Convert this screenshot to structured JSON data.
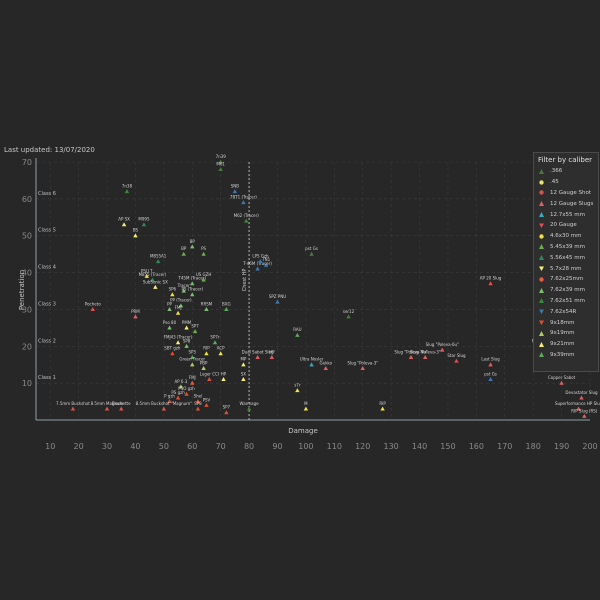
{
  "updated": "Last updated: 13/07/2020",
  "legend": {
    "title": "Filter by caliber",
    "items": [
      {
        "name": ".366",
        "color": "#4a7a3a",
        "shape": "triangle-up"
      },
      {
        "name": ".45",
        "color": "#e8e070",
        "shape": "circle"
      },
      {
        "name": "12 Gauge Shot",
        "color": "#d9534f",
        "shape": "circle"
      },
      {
        "name": "12 Gauge Slugs",
        "color": "#e06060",
        "shape": "triangle-up"
      },
      {
        "name": "12.7x55 mm",
        "color": "#3aa8c8",
        "shape": "triangle-up"
      },
      {
        "name": "20 Gauge",
        "color": "#e05050",
        "shape": "triangle-down"
      },
      {
        "name": "4.6x30 mm",
        "color": "#f0e040",
        "shape": "circle"
      },
      {
        "name": "5.45x39 mm",
        "color": "#6ab04c",
        "shape": "triangle-up"
      },
      {
        "name": "5.56x45 mm",
        "color": "#2e8b57",
        "shape": "triangle-up"
      },
      {
        "name": "5.7x28 mm",
        "color": "#f5f07a",
        "shape": "triangle-down"
      },
      {
        "name": "7.62x25mm",
        "color": "#e06040",
        "shape": "circle"
      },
      {
        "name": "7.62x39 mm",
        "color": "#7ac070",
        "shape": "triangle-up"
      },
      {
        "name": "7.62x51 mm",
        "color": "#3a8a3a",
        "shape": "triangle-up"
      },
      {
        "name": "7.62x54R",
        "color": "#3a7ab8",
        "shape": "triangle-down"
      },
      {
        "name": "9x18mm",
        "color": "#e05030",
        "shape": "triangle-down"
      },
      {
        "name": "9x19mm",
        "color": "#b0d060",
        "shape": "triangle-up"
      },
      {
        "name": "9x21mm",
        "color": "#f8f070",
        "shape": "triangle-up"
      },
      {
        "name": "9x39mm",
        "color": "#5aaa5a",
        "shape": "triangle-up"
      }
    ]
  },
  "chart_data": {
    "type": "scatter",
    "title": "",
    "xlabel": "Damage",
    "ylabel": "Penetration",
    "xlim": [
      5,
      200
    ],
    "ylim": [
      0,
      70
    ],
    "xticks": [
      "10",
      "20",
      "30",
      "40",
      "50",
      "60",
      "70",
      "80",
      "90",
      "100",
      "110",
      "120",
      "130",
      "140",
      "150",
      "160",
      "170",
      "180",
      "190",
      "200"
    ],
    "yticks": [
      "10",
      "20",
      "30",
      "40",
      "50",
      "60",
      "70"
    ],
    "grid": true,
    "legend_position": "right",
    "class_labels": [
      {
        "label": "Class 1",
        "y": 10
      },
      {
        "label": "Class 2",
        "y": 20
      },
      {
        "label": "Class 3",
        "y": 30
      },
      {
        "label": "Class 4",
        "y": 40
      },
      {
        "label": "Class 5",
        "y": 50
      },
      {
        "label": "Class 6",
        "y": 60
      }
    ],
    "reference_line": {
      "label": "Chest HP",
      "x": 80
    },
    "points": [
      {
        "label": "7n39",
        "x": 70,
        "y": 70,
        "color": "#4a7a3a"
      },
      {
        "label": "M61",
        "x": 70,
        "y": 68,
        "color": "#4a7a3a"
      },
      {
        "label": "7n38",
        "x": 37,
        "y": 62,
        "color": "#3a8a3a"
      },
      {
        "label": "SNB",
        "x": 75,
        "y": 62,
        "color": "#3a7ab8"
      },
      {
        "label": "7BT1 (Tracer)",
        "x": 78,
        "y": 59,
        "color": "#3a7ab8"
      },
      {
        "label": "AP SX",
        "x": 36,
        "y": 53,
        "color": "#f8f070"
      },
      {
        "label": "M995",
        "x": 43,
        "y": 53,
        "color": "#2e8b57"
      },
      {
        "label": "BS",
        "x": 40,
        "y": 50,
        "color": "#f8f070"
      },
      {
        "label": "M62 (Tracer)",
        "x": 79,
        "y": 54,
        "color": "#3a8a3a"
      },
      {
        "label": "BP",
        "x": 60,
        "y": 47,
        "color": "#7ac070"
      },
      {
        "label": "BP",
        "x": 57,
        "y": 45,
        "color": "#6ab04c"
      },
      {
        "label": "PS",
        "x": 64,
        "y": 45,
        "color": "#6ab04c"
      },
      {
        "label": "7N1",
        "x": 86,
        "y": 42,
        "color": "#3a7ab8"
      },
      {
        "label": "pst Gs",
        "x": 102,
        "y": 45,
        "color": "#4a7a3a"
      },
      {
        "label": "M855A1",
        "x": 48,
        "y": 43,
        "color": "#2e8b57"
      },
      {
        "label": "T-46M (Tracer)",
        "x": 83,
        "y": 41,
        "color": "#3a7ab8"
      },
      {
        "label": "LPS Gzh",
        "x": 84,
        "y": 43,
        "color": "#3a7ab8"
      },
      {
        "label": "PSU T",
        "x": 44,
        "y": 39,
        "color": "#f0e040"
      },
      {
        "label": "M855 (Tracer)",
        "x": 46,
        "y": 38,
        "color": "#2e8b57"
      },
      {
        "label": "SubSonic SX",
        "x": 47,
        "y": 36,
        "color": "#f8f070"
      },
      {
        "label": "T45M (Tracer)",
        "x": 60,
        "y": 37,
        "color": "#7ac070"
      },
      {
        "label": "US GZH",
        "x": 64,
        "y": 38,
        "color": "#6ab04c"
      },
      {
        "label": "Tracer",
        "x": 57,
        "y": 35,
        "color": "#7ac070"
      },
      {
        "label": "PS (Tracer)",
        "x": 60,
        "y": 34,
        "color": "#7ac070"
      },
      {
        "label": "SP6",
        "x": 53,
        "y": 34,
        "color": "#f0e040"
      },
      {
        "label": "AP 20 Slug",
        "x": 165,
        "y": 37,
        "color": "#e05050"
      },
      {
        "label": "Pocheto",
        "x": 25,
        "y": 30,
        "color": "#e05050"
      },
      {
        "label": "PRM",
        "x": 40,
        "y": 28,
        "color": "#e06060"
      },
      {
        "label": "PP",
        "x": 52,
        "y": 30,
        "color": "#7ac070"
      },
      {
        "label": "PP (Tracer)",
        "x": 56,
        "y": 31,
        "color": "#7ac070"
      },
      {
        "label": "FMJ",
        "x": 55,
        "y": 29,
        "color": "#f0e040"
      },
      {
        "label": "RRSM",
        "x": 65,
        "y": 30,
        "color": "#7ac070"
      },
      {
        "label": "BXG",
        "x": 72,
        "y": 30,
        "color": "#5aaa5a"
      },
      {
        "label": "SPZ PNU",
        "x": 90,
        "y": 32,
        "color": "#3a7ab8"
      },
      {
        "label": "ser12",
        "x": 115,
        "y": 28,
        "color": "#4a7a3a"
      },
      {
        "label": "RAU",
        "x": 97,
        "y": 23,
        "color": "#5aaa5a"
      },
      {
        "label": "SP7",
        "x": 61,
        "y": 24,
        "color": "#6ab04c"
      },
      {
        "label": "Pso 80",
        "x": 52,
        "y": 25,
        "color": "#7ac070"
      },
      {
        "label": "PMM",
        "x": 58,
        "y": 25,
        "color": "#f8f070"
      },
      {
        "label": "FMJ43 (Tracer)",
        "x": 55,
        "y": 21,
        "color": "#f8f070"
      },
      {
        "label": "SP7r",
        "x": 68,
        "y": 21,
        "color": "#5aaa5a"
      },
      {
        "label": "ACP",
        "x": 70,
        "y": 18,
        "color": "#e8e070"
      },
      {
        "label": "Dual Sabot Slug",
        "x": 83,
        "y": 17,
        "color": "#e06060"
      },
      {
        "label": "HP",
        "x": 88,
        "y": 17,
        "color": "#e06060"
      },
      {
        "label": "Ultra Nosler",
        "x": 102,
        "y": 15,
        "color": "#3aa8c8"
      },
      {
        "label": "Gekko",
        "x": 107,
        "y": 14,
        "color": "#e06060"
      },
      {
        "label": "Slug \"Poleva-3\"",
        "x": 120,
        "y": 14,
        "color": "#e06060"
      },
      {
        "label": "Slug \"Poleva-6u\"",
        "x": 137,
        "y": 17,
        "color": "#e06060"
      },
      {
        "label": "Slug \"Poleva-3\"",
        "x": 142,
        "y": 17,
        "color": "#e06060"
      },
      {
        "label": "Slug \"Poleva-6u\"",
        "x": 148,
        "y": 19,
        "color": "#e06060"
      },
      {
        "label": "Star Slug",
        "x": 153,
        "y": 16,
        "color": "#e05050"
      },
      {
        "label": "Last Slug",
        "x": 165,
        "y": 15,
        "color": "#e06060"
      },
      {
        "label": "FTX Custo",
        "x": 183,
        "y": 20,
        "color": "#e05050"
      },
      {
        "label": "SP8",
        "x": 58,
        "y": 20,
        "color": "#7ac070"
      },
      {
        "label": "RIP",
        "x": 65,
        "y": 18,
        "color": "#f0e040"
      },
      {
        "label": "SP5",
        "x": 60,
        "y": 17,
        "color": "#5aaa5a"
      },
      {
        "label": "SBT gzh",
        "x": 53,
        "y": 18,
        "color": "#e05030"
      },
      {
        "label": "Green Tracer",
        "x": 60,
        "y": 15,
        "color": "#b0d060"
      },
      {
        "label": "PBP",
        "x": 64,
        "y": 14,
        "color": "#b0d060"
      },
      {
        "label": "MP",
        "x": 78,
        "y": 15,
        "color": "#f8f070"
      },
      {
        "label": "HP",
        "x": 71,
        "y": 11,
        "color": "#f8f070"
      },
      {
        "label": "SX",
        "x": 78,
        "y": 11,
        "color": "#f8f070"
      },
      {
        "label": "Luger CCI",
        "x": 66,
        "y": 11,
        "color": "#e05030"
      },
      {
        "label": "AP 6.3",
        "x": 56,
        "y": 9,
        "color": "#b0d060"
      },
      {
        "label": "FMJ",
        "x": 60,
        "y": 10,
        "color": "#e06040"
      },
      {
        "label": "PSO gzh",
        "x": 58,
        "y": 7,
        "color": "#e05030"
      },
      {
        "label": "PS gzh",
        "x": 55,
        "y": 6,
        "color": "#e05030"
      },
      {
        "label": "P gzh",
        "x": 52,
        "y": 5,
        "color": "#e05030"
      },
      {
        "label": "Shel",
        "x": 62,
        "y": 5,
        "color": "#e05030"
      },
      {
        "label": "PSV",
        "x": 65,
        "y": 4,
        "color": "#e05030"
      },
      {
        "label": "SP8",
        "x": 62,
        "y": 3,
        "color": "#e05030"
      },
      {
        "label": "SP7",
        "x": 72,
        "y": 2,
        "color": "#e05030"
      },
      {
        "label": "Warmage",
        "x": 80,
        "y": 3,
        "color": "#4a7a3a"
      },
      {
        "label": "M",
        "x": 100,
        "y": 3,
        "color": "#f0e040"
      },
      {
        "label": "RIP",
        "x": 127,
        "y": 3,
        "color": "#f0e040"
      },
      {
        "label": "s7r",
        "x": 97,
        "y": 8,
        "color": "#f0e040"
      },
      {
        "label": "pst Gs",
        "x": 165,
        "y": 11,
        "color": "#3a7ab8"
      },
      {
        "label": "7.5mm Buckshot",
        "x": 18,
        "y": 3,
        "color": "#d9534f"
      },
      {
        "label": "8.5mm Magnum",
        "x": 30,
        "y": 3,
        "color": "#d9534f"
      },
      {
        "label": "Flechette",
        "x": 35,
        "y": 3,
        "color": "#d9534f"
      },
      {
        "label": "8.5mm Buckshot \"Magnum\"",
        "x": 50,
        "y": 3,
        "color": "#d9534f"
      },
      {
        "label": "Devastator Slug",
        "x": 197,
        "y": 6,
        "color": "#e06060"
      },
      {
        "label": "Superformance HP Slug",
        "x": 196,
        "y": 3,
        "color": "#e06060"
      },
      {
        "label": "RIP Slug (RS)",
        "x": 198,
        "y": 1,
        "color": "#e06060"
      },
      {
        "label": "Copper Sabot",
        "x": 190,
        "y": 10,
        "color": "#e06060"
      }
    ]
  }
}
